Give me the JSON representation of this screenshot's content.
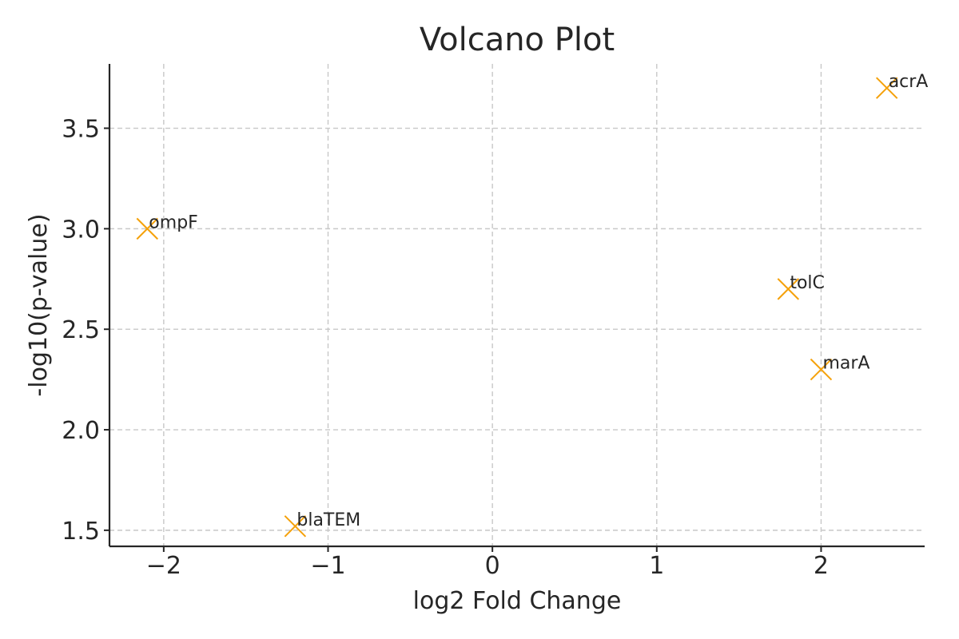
{
  "chart_data": {
    "type": "scatter",
    "title": "Volcano Plot",
    "xlabel": "log2 Fold Change",
    "ylabel": "-log10(p-value)",
    "xlim": [
      -2.33,
      2.63
    ],
    "ylim": [
      1.42,
      3.82
    ],
    "grid": true,
    "x_ticks": [
      {
        "value": -2,
        "label": "−2"
      },
      {
        "value": -1,
        "label": "−1"
      },
      {
        "value": 0,
        "label": "0"
      },
      {
        "value": 1,
        "label": "1"
      },
      {
        "value": 2,
        "label": "2"
      }
    ],
    "y_ticks": [
      {
        "value": 1.5,
        "label": "1.5"
      },
      {
        "value": 2.0,
        "label": "2.0"
      },
      {
        "value": 2.5,
        "label": "2.5"
      },
      {
        "value": 3.0,
        "label": "3.0"
      },
      {
        "value": 3.5,
        "label": "3.5"
      }
    ],
    "marker": "x",
    "marker_color": "#f5a10a",
    "points": [
      {
        "label": "acrA",
        "x": 2.4,
        "y": 3.7
      },
      {
        "label": "ompF",
        "x": -2.1,
        "y": 3.0
      },
      {
        "label": "tolC",
        "x": 1.8,
        "y": 2.7
      },
      {
        "label": "marA",
        "x": 2.0,
        "y": 2.3
      },
      {
        "label": "blaTEM",
        "x": -1.2,
        "y": 1.52
      }
    ]
  }
}
